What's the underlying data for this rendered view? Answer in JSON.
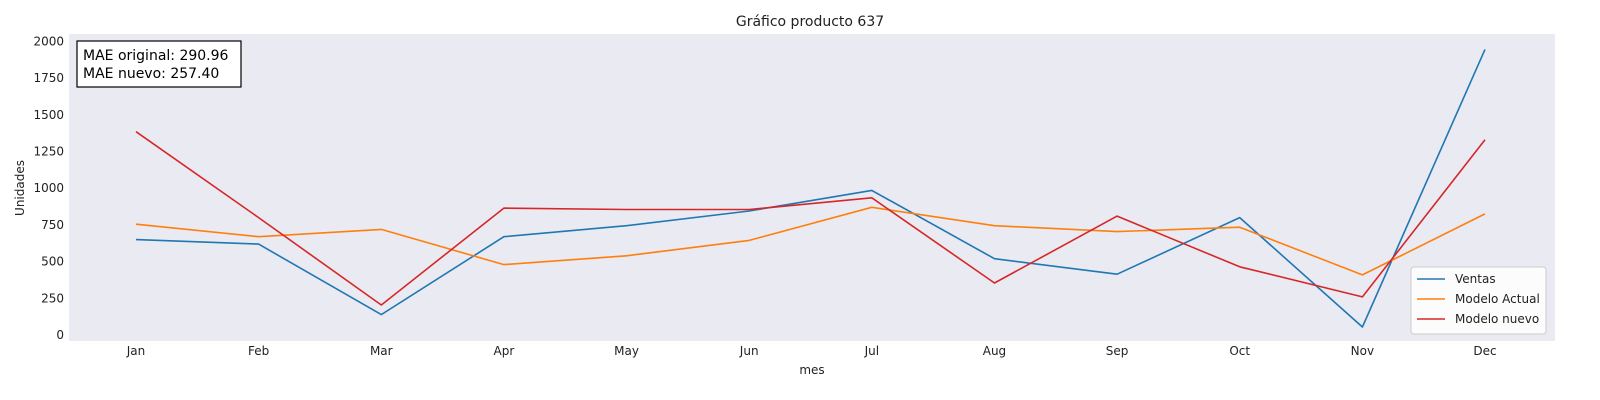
{
  "chart_data": {
    "type": "line",
    "title": "Gráfico producto 637",
    "xlabel": "mes",
    "ylabel": "Unidades",
    "categories": [
      "Jan",
      "Feb",
      "Mar",
      "Apr",
      "May",
      "Jun",
      "Jul",
      "Aug",
      "Sep",
      "Oct",
      "Nov",
      "Dec"
    ],
    "yticks": [
      "0",
      "250",
      "500",
      "750",
      "1000",
      "1250",
      "1500",
      "1750",
      "2000"
    ],
    "ylim": [
      -40,
      2050
    ],
    "grid": false,
    "legend_position": "bottom-right",
    "background": "#eaeaf2",
    "series": [
      {
        "name": "Ventas",
        "color": "#1f77b4",
        "values": [
          650,
          620,
          140,
          670,
          745,
          845,
          985,
          520,
          415,
          800,
          55,
          1945
        ]
      },
      {
        "name": "Modelo Actual",
        "color": "#ff7f0e",
        "values": [
          755,
          670,
          720,
          480,
          540,
          645,
          870,
          745,
          705,
          735,
          410,
          825
        ]
      },
      {
        "name": "Modelo nuevo",
        "color": "#d62728",
        "values": [
          1385,
          800,
          205,
          865,
          855,
          855,
          935,
          355,
          810,
          465,
          260,
          1330
        ]
      }
    ],
    "annotation": {
      "line1": "MAE original: 290.96",
      "line2": "MAE nuevo: 257.40"
    }
  }
}
